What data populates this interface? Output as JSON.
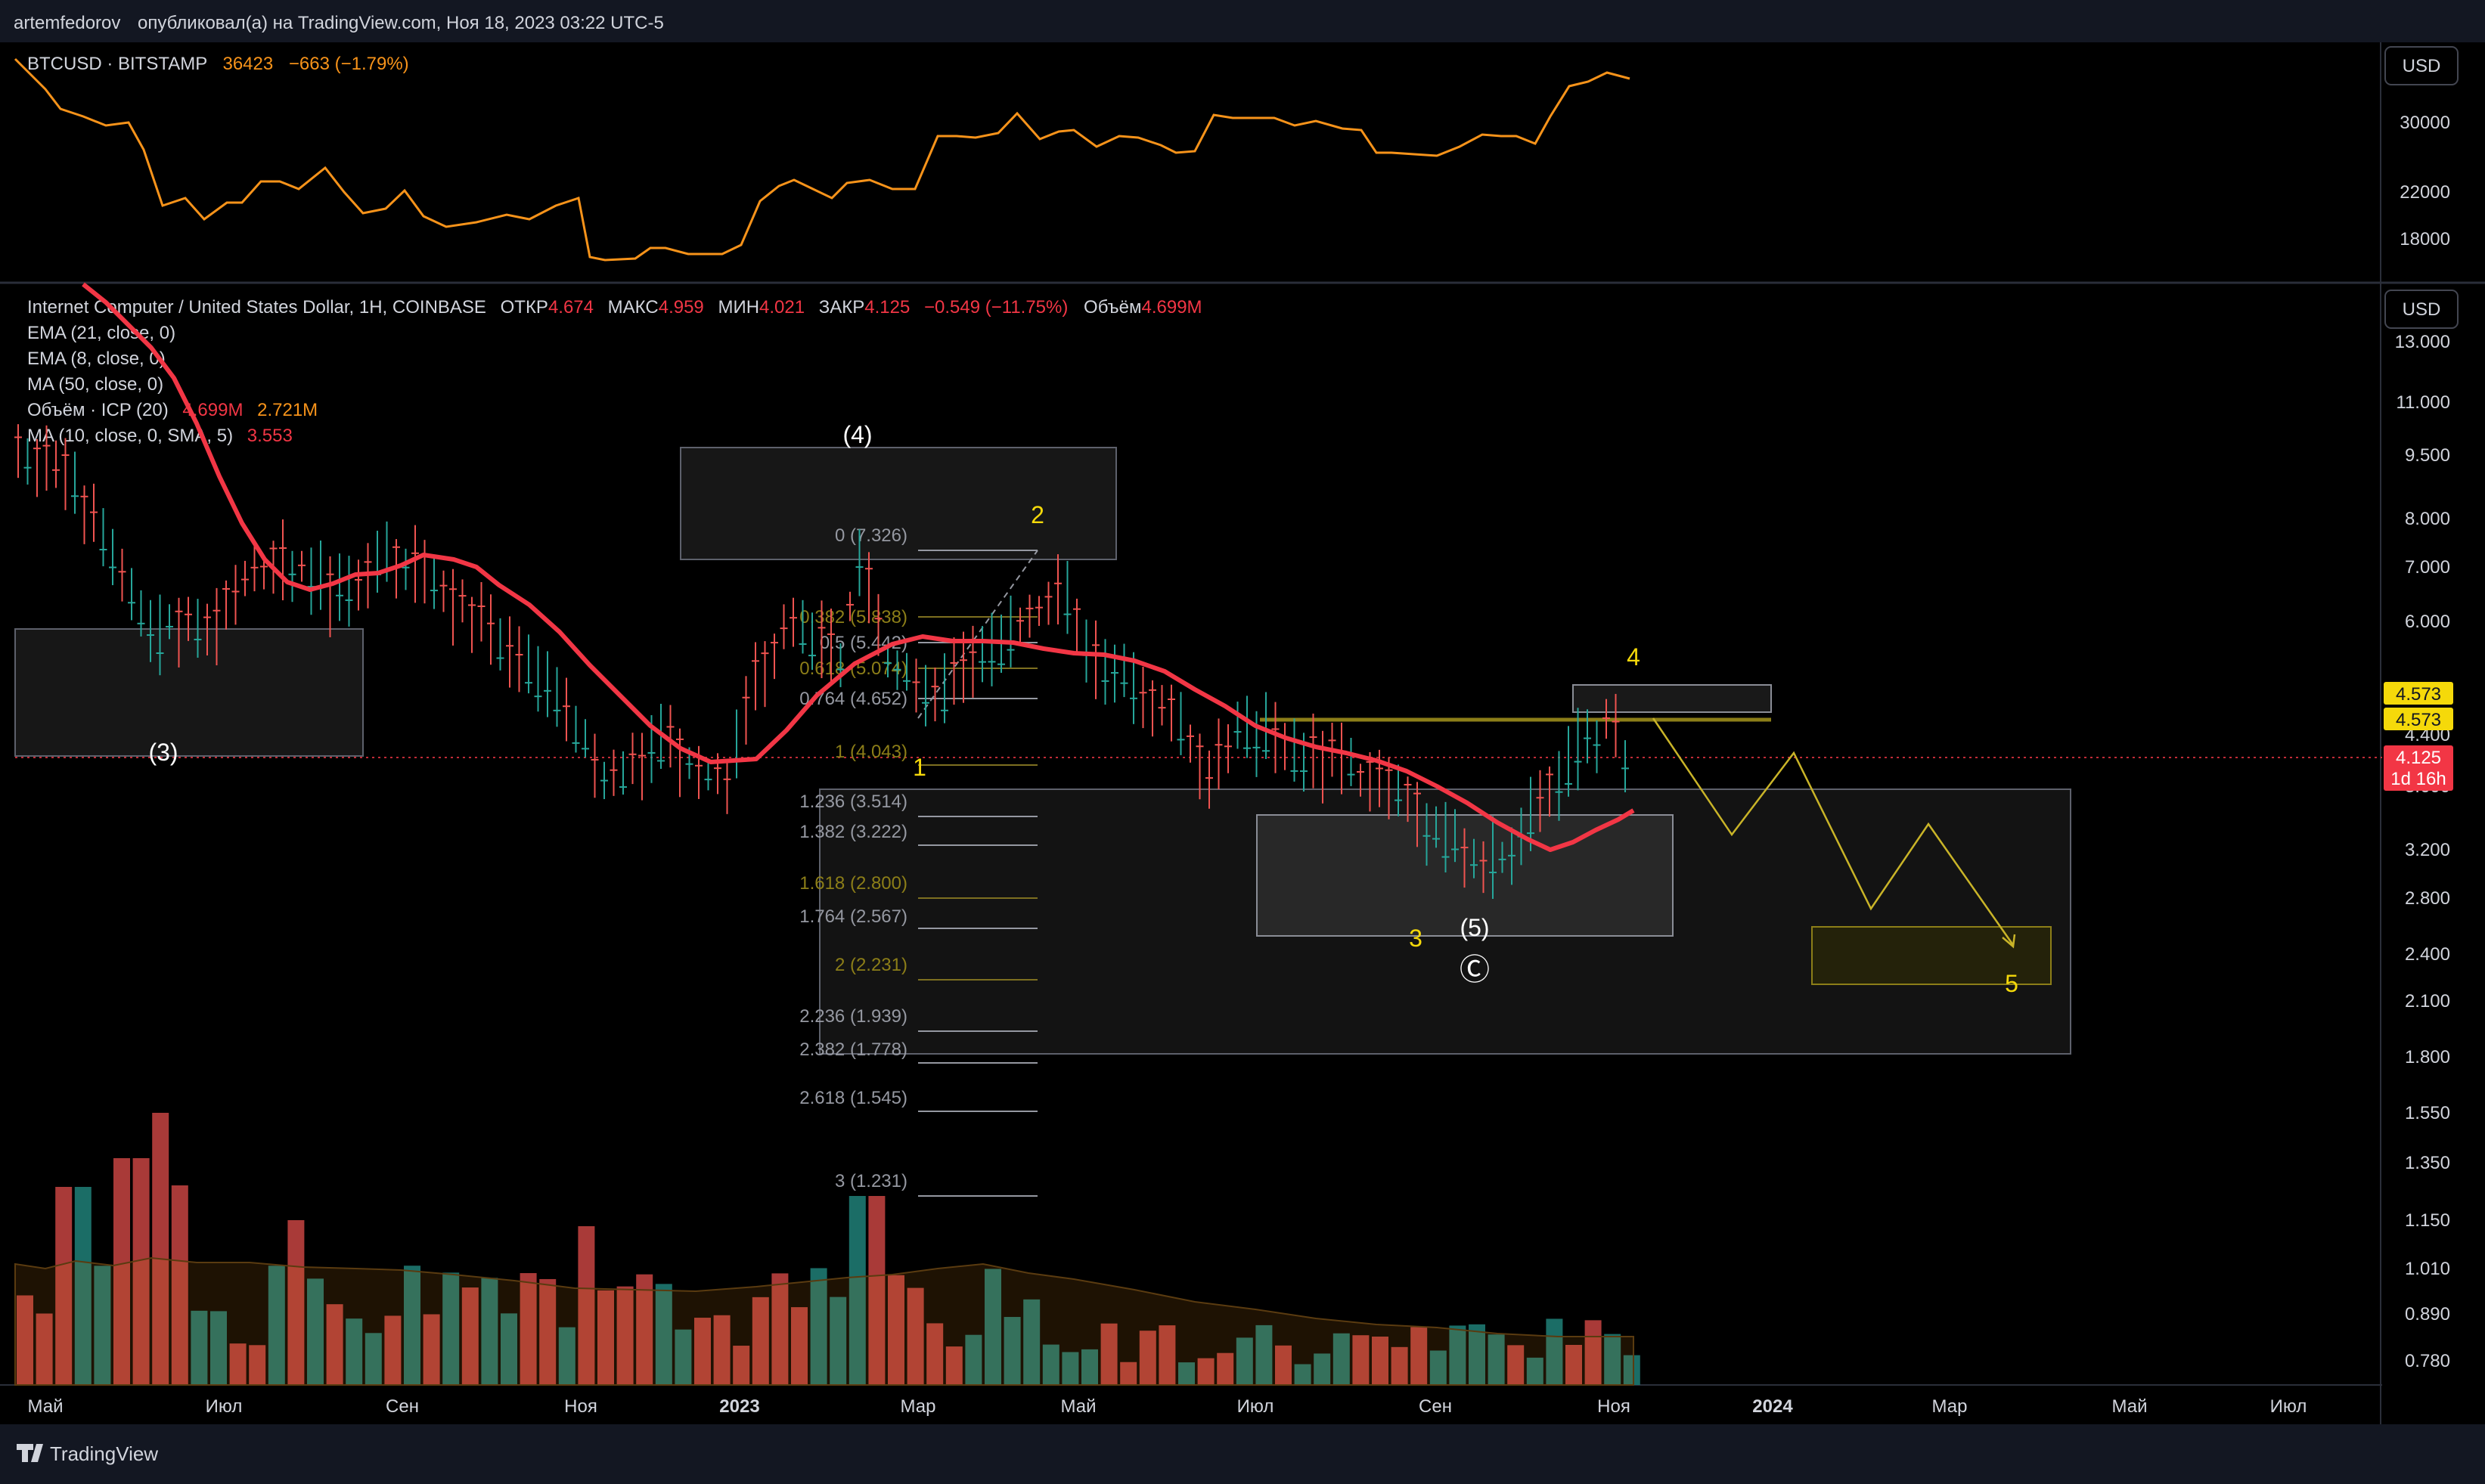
{
  "header": {
    "author": "artemfedorov",
    "published_text": "опубликовал(а) на TradingView.com, Ноя 18, 2023 03:22 UTC-5"
  },
  "footer": {
    "brand": "TradingView"
  },
  "top_pane": {
    "legend": {
      "symbol": "BTCUSD · BITSTAMP",
      "last": "36423",
      "change": "−663 (−1.79%)"
    },
    "currency": "USD",
    "y_ticks": [
      "30000",
      "22000",
      "18000"
    ],
    "colors": {
      "line": "#f7931a",
      "change": "#f7931a"
    }
  },
  "main_pane": {
    "currency": "USD",
    "legend": {
      "title": "Internet Computer / United States Dollar, 1H, COINBASE",
      "o_label": "ОТКР",
      "o": "4.674",
      "h_label": "МАКС",
      "h": "4.959",
      "l_label": "МИН",
      "l": "4.021",
      "c_label": "ЗАКР",
      "c": "4.125",
      "chg": "−0.549 (−11.75%)",
      "vol_label": "Объём",
      "vol": "4.699M"
    },
    "indicators": [
      {
        "label": "EMA (21, close, 0)",
        "v1": "",
        "v2": ""
      },
      {
        "label": "EMA (8, close, 0)",
        "v1": "",
        "v2": ""
      },
      {
        "label": "MA (50, close, 0)",
        "v1": "",
        "v2": ""
      },
      {
        "label": "Объём · ICP (20)",
        "v1": "4.699M",
        "v2": "2.721M"
      },
      {
        "label": "MA (10, close, 0, SMA, 5)",
        "v1": "3.553",
        "v2": ""
      }
    ],
    "y_ticks": [
      "13.000",
      "11.000",
      "9.500",
      "8.000",
      "7.000",
      "6.000",
      "4.400",
      "3.600",
      "3.200",
      "2.800",
      "2.400",
      "2.100",
      "1.800",
      "1.550",
      "1.350",
      "1.150",
      "1.010",
      "0.890",
      "0.780"
    ],
    "price_tags": [
      {
        "text": "4.573",
        "bg": "#f5d90a",
        "fg": "#131722"
      },
      {
        "text": "4.573",
        "bg": "#f5d90a",
        "fg": "#131722"
      },
      {
        "text": "4.125",
        "bg": "#f23645",
        "fg": "#ffffff"
      },
      {
        "text": "1d 16h",
        "bg": "#f23645",
        "fg": "#ffffff"
      }
    ],
    "fib_labels": [
      "0 (7.326)",
      "0.382 (5.838)",
      "0.5 (5.442)",
      "0.618 (5.074)",
      "0.764 (4.652)",
      "1 (4.043)",
      "1.236 (3.514)",
      "1.382 (3.222)",
      "1.618 (2.800)",
      "1.764 (2.567)",
      "2 (2.231)",
      "2.236 (1.939)",
      "2.382 (1.778)",
      "2.618 (1.545)",
      "3 (1.231)"
    ],
    "wave_labels": {
      "w4_big": "(4)",
      "w3_big": "(3)",
      "w5_big": "(5)",
      "wc": "Ⓒ",
      "w1": "1",
      "w2": "2",
      "w3": "3",
      "w4": "4",
      "w5": "5"
    },
    "colors": {
      "up": "#26a69a",
      "down": "#ef5350",
      "ma": "#f23645",
      "wave_yellow": "#f5d90a",
      "fib": "#9598a1"
    }
  },
  "x_axis": [
    "Май",
    "Июл",
    "Сен",
    "Ноя",
    "2023",
    "Мар",
    "Май",
    "Июл",
    "Сен",
    "Ноя",
    "2024",
    "Мар",
    "Май",
    "Июл"
  ]
}
